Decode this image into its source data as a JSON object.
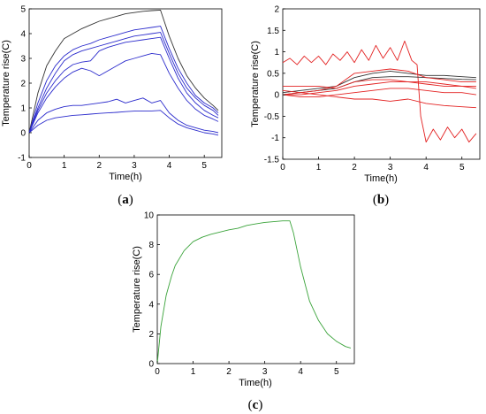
{
  "chart_data": [
    {
      "type": "line",
      "panel_label": {
        "open": "(",
        "letter": "a",
        "close": ")"
      },
      "xlabel": "Time(h)",
      "ylabel": "Temperature rise(C)",
      "xlim": [
        0,
        5.5
      ],
      "ylim": [
        -1,
        5
      ],
      "xticks": [
        "0",
        "1",
        "2",
        "3",
        "4",
        "5"
      ],
      "yticks": [
        "-1",
        "0",
        "1",
        "2",
        "3",
        "4",
        "5"
      ],
      "grid": false,
      "series_color": "#2b2bcc",
      "series": [
        {
          "color": "#333333",
          "x": [
            0,
            0.25,
            0.5,
            0.75,
            1,
            1.25,
            1.5,
            1.75,
            2,
            2.25,
            2.5,
            2.75,
            3,
            3.25,
            3.5,
            3.75,
            4,
            4.25,
            4.5,
            4.75,
            5,
            5.25,
            5.4
          ],
          "y": [
            0,
            1.6,
            2.7,
            3.3,
            3.8,
            4.0,
            4.2,
            4.35,
            4.5,
            4.6,
            4.7,
            4.8,
            4.85,
            4.9,
            4.93,
            4.95,
            3.9,
            3.0,
            2.3,
            1.8,
            1.4,
            1.1,
            0.9
          ]
        },
        {
          "x": [
            0,
            0.25,
            0.5,
            0.75,
            1,
            1.25,
            1.5,
            1.75,
            2,
            2.25,
            2.5,
            2.75,
            3,
            3.25,
            3.5,
            3.75,
            4,
            4.25,
            4.5,
            4.75,
            5,
            5.25,
            5.4
          ],
          "y": [
            0,
            1.2,
            2.1,
            2.7,
            3.1,
            3.35,
            3.5,
            3.6,
            3.75,
            3.85,
            3.95,
            4.05,
            4.15,
            4.2,
            4.25,
            4.3,
            3.4,
            2.6,
            2.0,
            1.5,
            1.2,
            1.0,
            0.8
          ]
        },
        {
          "x": [
            0,
            0.25,
            0.5,
            0.75,
            1,
            1.25,
            1.5,
            1.75,
            2,
            2.25,
            2.5,
            2.75,
            3,
            3.25,
            3.5,
            3.75,
            4,
            4.25,
            4.5,
            4.75,
            5,
            5.25,
            5.4
          ],
          "y": [
            0,
            1.0,
            1.8,
            2.4,
            2.9,
            3.15,
            3.3,
            3.4,
            3.5,
            3.6,
            3.7,
            3.8,
            3.9,
            3.95,
            4.0,
            4.05,
            3.2,
            2.4,
            1.8,
            1.4,
            1.1,
            0.9,
            0.7
          ]
        },
        {
          "x": [
            0,
            0.25,
            0.5,
            0.75,
            1,
            1.25,
            1.5,
            1.75,
            2,
            2.25,
            2.5,
            2.75,
            3,
            3.25,
            3.5,
            3.75,
            4,
            4.25,
            4.5,
            4.75,
            5,
            5.25,
            5.4
          ],
          "y": [
            0,
            0.9,
            1.6,
            2.1,
            2.5,
            2.75,
            2.85,
            2.9,
            3.3,
            3.45,
            3.55,
            3.65,
            3.7,
            3.75,
            3.8,
            3.85,
            3.0,
            2.2,
            1.6,
            1.2,
            0.9,
            0.7,
            0.6
          ]
        },
        {
          "x": [
            0,
            0.25,
            0.5,
            0.75,
            1,
            1.25,
            1.5,
            1.75,
            2,
            2.25,
            2.5,
            2.75,
            3,
            3.25,
            3.5,
            3.75,
            4,
            4.25,
            4.5,
            4.75,
            5,
            5.25,
            5.4
          ],
          "y": [
            0,
            0.8,
            1.4,
            1.85,
            2.2,
            2.45,
            2.6,
            2.5,
            2.3,
            2.5,
            2.7,
            2.9,
            3.0,
            3.1,
            3.2,
            3.15,
            2.4,
            1.8,
            1.3,
            0.95,
            0.7,
            0.55,
            0.45
          ]
        },
        {
          "x": [
            0,
            0.25,
            0.5,
            0.75,
            1,
            1.25,
            1.5,
            1.75,
            2,
            2.25,
            2.5,
            2.75,
            3,
            3.25,
            3.5,
            3.75,
            4,
            4.25,
            4.5,
            4.75,
            5,
            5.25,
            5.4
          ],
          "y": [
            0,
            0.5,
            0.8,
            0.95,
            1.05,
            1.1,
            1.1,
            1.15,
            1.2,
            1.25,
            1.35,
            1.2,
            1.3,
            1.4,
            1.2,
            1.3,
            0.8,
            0.5,
            0.3,
            0.2,
            0.1,
            0.05,
            0.0
          ]
        },
        {
          "x": [
            0,
            0.25,
            0.5,
            0.75,
            1,
            1.25,
            1.5,
            1.75,
            2,
            2.25,
            2.5,
            2.75,
            3,
            3.25,
            3.5,
            3.75,
            4,
            4.25,
            4.5,
            4.75,
            5,
            5.25,
            5.4
          ],
          "y": [
            0,
            0.3,
            0.5,
            0.6,
            0.65,
            0.7,
            0.72,
            0.75,
            0.78,
            0.8,
            0.82,
            0.85,
            0.87,
            0.88,
            0.88,
            0.9,
            0.6,
            0.35,
            0.2,
            0.1,
            0.0,
            -0.05,
            -0.1
          ]
        }
      ]
    },
    {
      "type": "line",
      "panel_label": {
        "open": "(",
        "letter": "b",
        "close": ")"
      },
      "xlabel": "Time(h)",
      "ylabel": "Temperature rise(C)",
      "xlim": [
        0,
        5.5
      ],
      "ylim": [
        -1.5,
        2
      ],
      "xticks": [
        "0",
        "1",
        "2",
        "3",
        "4",
        "5"
      ],
      "yticks": [
        "-1.5",
        "-1",
        "-0.5",
        "0",
        "0.5",
        "1",
        "1.5",
        "2"
      ],
      "grid": false,
      "series_color": "#e32222",
      "series": [
        {
          "x": [
            0,
            0.2,
            0.4,
            0.6,
            0.8,
            1,
            1.2,
            1.4,
            1.6,
            1.8,
            2,
            2.2,
            2.4,
            2.6,
            2.8,
            3,
            3.2,
            3.4,
            3.6,
            3.75,
            3.85,
            4,
            4.2,
            4.4,
            4.6,
            4.8,
            5,
            5.2,
            5.4
          ],
          "y": [
            0.75,
            0.85,
            0.7,
            0.9,
            0.75,
            0.9,
            0.7,
            0.95,
            0.8,
            1.0,
            0.75,
            1.05,
            0.8,
            1.15,
            0.85,
            1.1,
            0.8,
            1.25,
            0.8,
            0.7,
            -0.5,
            -1.1,
            -0.8,
            -1.05,
            -0.75,
            -1.0,
            -0.8,
            -1.1,
            -0.9
          ]
        },
        {
          "color": "#333333",
          "x": [
            0,
            0.5,
            1,
            1.5,
            2,
            2.5,
            3,
            3.5,
            4,
            4.5,
            5,
            5.4
          ],
          "y": [
            0.05,
            0.1,
            0.15,
            0.2,
            0.4,
            0.5,
            0.55,
            0.5,
            0.45,
            0.45,
            0.42,
            0.4
          ]
        },
        {
          "color": "#333333",
          "x": [
            0,
            0.5,
            1,
            1.5,
            2,
            2.5,
            3,
            3.5,
            4,
            4.5,
            5,
            5.4
          ],
          "y": [
            0.0,
            0.05,
            0.1,
            0.15,
            0.3,
            0.4,
            0.42,
            0.42,
            0.4,
            0.38,
            0.36,
            0.35
          ]
        },
        {
          "x": [
            0,
            0.5,
            1,
            1.5,
            2,
            2.5,
            3,
            3.5,
            4,
            4.5,
            5,
            5.4
          ],
          "y": [
            0.0,
            0.05,
            0.1,
            0.2,
            0.5,
            0.55,
            0.6,
            0.55,
            0.4,
            0.35,
            0.3,
            0.3
          ]
        },
        {
          "x": [
            0,
            0.5,
            1,
            1.5,
            2,
            2.5,
            3,
            3.5,
            4,
            4.5,
            5,
            5.4
          ],
          "y": [
            0.2,
            0.2,
            0.2,
            0.15,
            0.3,
            0.35,
            0.35,
            0.3,
            0.3,
            0.25,
            0.2,
            0.2
          ]
        },
        {
          "x": [
            0,
            0.5,
            1,
            1.5,
            2,
            2.5,
            3,
            3.5,
            4,
            4.5,
            5,
            5.4
          ],
          "y": [
            0.0,
            0.0,
            0.05,
            0.1,
            0.2,
            0.25,
            0.3,
            0.3,
            0.25,
            0.2,
            0.2,
            0.15
          ]
        },
        {
          "x": [
            0,
            0.5,
            1,
            1.5,
            2,
            2.5,
            3,
            3.5,
            4,
            4.5,
            5,
            5.4
          ],
          "y": [
            0.0,
            -0.05,
            -0.05,
            0.0,
            0.05,
            0.1,
            0.15,
            0.15,
            0.1,
            0.05,
            0.05,
            0.0
          ]
        },
        {
          "x": [
            0,
            0.5,
            1,
            1.5,
            2,
            2.5,
            3,
            3.5,
            4,
            4.5,
            5,
            5.4
          ],
          "y": [
            0.1,
            0.05,
            0.0,
            -0.05,
            -0.1,
            -0.1,
            -0.15,
            -0.1,
            -0.2,
            -0.25,
            -0.28,
            -0.3
          ]
        }
      ]
    },
    {
      "type": "line",
      "panel_label": {
        "open": "(",
        "letter": "c",
        "close": ")"
      },
      "xlabel": "Time(h)",
      "ylabel": "Temperature rise(C)",
      "xlim": [
        0,
        5.5
      ],
      "ylim": [
        0,
        10
      ],
      "xticks": [
        "0",
        "1",
        "2",
        "3",
        "4",
        "5"
      ],
      "yticks": [
        "0",
        "2",
        "4",
        "6",
        "8",
        "10"
      ],
      "grid": false,
      "series_color": "#3aa33a",
      "series": [
        {
          "x": [
            0,
            0.1,
            0.25,
            0.4,
            0.5,
            0.75,
            1,
            1.25,
            1.5,
            1.75,
            2,
            2.25,
            2.5,
            2.75,
            3,
            3.25,
            3.5,
            3.7,
            3.8,
            4,
            4.25,
            4.5,
            4.75,
            5,
            5.25,
            5.4
          ],
          "y": [
            0,
            2.5,
            4.6,
            5.9,
            6.6,
            7.6,
            8.2,
            8.5,
            8.7,
            8.85,
            9.0,
            9.1,
            9.3,
            9.4,
            9.5,
            9.55,
            9.6,
            9.6,
            8.8,
            6.5,
            4.2,
            2.9,
            2.0,
            1.5,
            1.15,
            1.05
          ]
        }
      ]
    }
  ]
}
